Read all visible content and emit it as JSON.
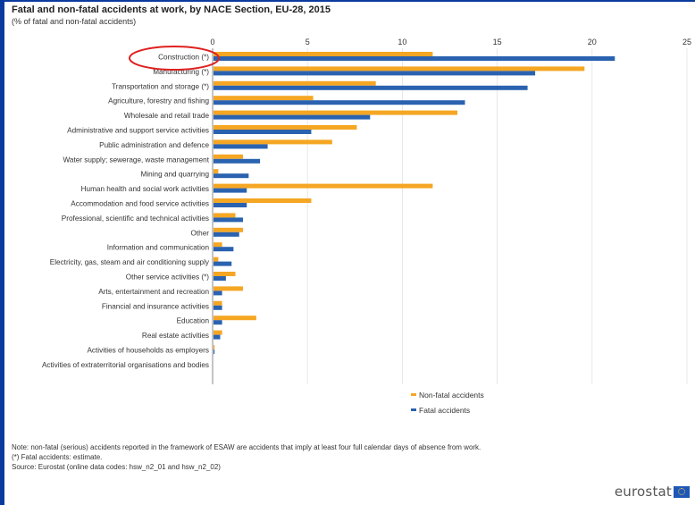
{
  "title": "Fatal and non-fatal accidents at work, by NACE Section, EU-28, 2015",
  "subtitle": "(% of fatal and non-fatal accidents)",
  "notes": {
    "line1": "Note: non-fatal (serious) accidents reported in the framework of ESAW are accidents that imply at least four full calendar days of absence from work.",
    "line2": "(*) Fatal accidents: estimate.",
    "line3": "Source: Eurostat (online data codes: hsw_n2_01 and hsw_n2_02)"
  },
  "logo": {
    "text": "eurostat"
  },
  "colors": {
    "non_fatal": "#f5a623",
    "fatal": "#2a62b0",
    "highlight": "#e02020",
    "frame": "#0b3a9e"
  },
  "chart_data": {
    "type": "bar",
    "orientation": "horizontal",
    "categories": [
      "Construction (*)",
      "Manufacturing (*)",
      "Transportation and storage (*)",
      "Agriculture, forestry and fishing",
      "Wholesale and retail trade",
      "Administrative and support service activities",
      "Public administration and defence",
      "Water supply; sewerage, waste management",
      "Mining and quarrying",
      "Human health and social work activities",
      "Accommodation and food service activities",
      "Professional, scientific and technical activities",
      "Other",
      "Information and communication",
      "Electricity, gas, steam and air conditioning supply",
      "Other service activities (*)",
      "Arts, entertainment and recreation",
      "Financial and insurance activities",
      "Education",
      "Real estate activities",
      "Activities of households as employers",
      "Activities of extraterritorial organisations and bodies"
    ],
    "series": [
      {
        "name": "Non-fatal accidents",
        "values": [
          11.6,
          19.6,
          8.6,
          5.3,
          12.9,
          7.6,
          6.3,
          1.6,
          0.3,
          11.6,
          5.2,
          1.2,
          1.6,
          0.5,
          0.3,
          1.2,
          1.6,
          0.5,
          2.3,
          0.5,
          0.1,
          0.0
        ]
      },
      {
        "name": "Fatal accidents",
        "values": [
          21.2,
          17.0,
          16.6,
          13.3,
          8.3,
          5.2,
          2.9,
          2.5,
          1.9,
          1.8,
          1.8,
          1.6,
          1.4,
          1.1,
          1.0,
          0.7,
          0.5,
          0.5,
          0.5,
          0.4,
          0.1,
          0.0
        ]
      }
    ],
    "xlim": [
      0,
      25
    ],
    "xticks": [
      "0",
      "5",
      "10",
      "15",
      "20",
      "25"
    ],
    "highlighted_category": "Construction (*)",
    "grid": true,
    "legend_position": "bottom-right"
  }
}
